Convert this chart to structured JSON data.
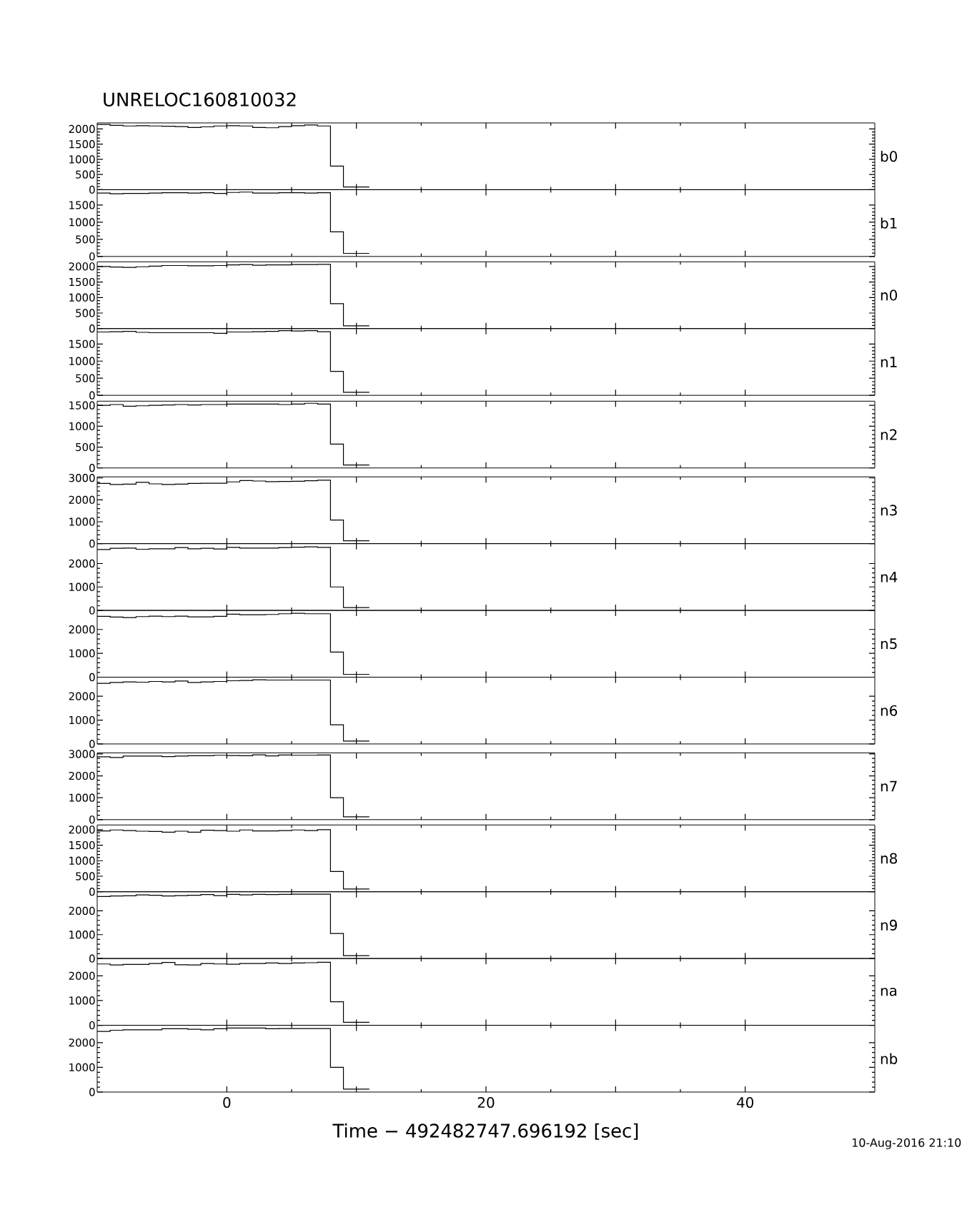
{
  "chart_data": [
    {
      "type": "histogram",
      "title": "UNRELOC160810032",
      "annotations": [
        "b0"
      ],
      "color": "#000000",
      "bins": [
        -10,
        -9,
        -8,
        -7,
        -6,
        -5,
        -4,
        -3,
        -2,
        -1,
        0,
        1,
        2,
        3,
        4,
        5,
        6,
        7,
        8,
        9,
        10,
        11
      ],
      "values": [
        2150,
        2120,
        2100,
        2110,
        2100,
        2090,
        2080,
        2050,
        2070,
        2100,
        2110,
        2100,
        2050,
        2040,
        2080,
        2110,
        2130,
        2100,
        780,
        90,
        90
      ],
      "xlim": [
        -10,
        50
      ],
      "xticks": [
        {
          "value": 0,
          "label": null
        },
        {
          "value": 10,
          "label": null
        },
        {
          "value": 20,
          "label": null
        },
        {
          "value": 30,
          "label": null
        },
        {
          "value": 40,
          "label": null
        }
      ],
      "ylim": [
        0,
        2200
      ],
      "yticks": [
        0,
        500,
        1000,
        1500,
        2000
      ],
      "tick_labels": "y"
    },
    {
      "type": "histogram",
      "annotations": [
        "b1"
      ],
      "color": "#000000",
      "bins": [
        -10,
        -9,
        -8,
        -7,
        -6,
        -5,
        -4,
        -3,
        -2,
        -1,
        0,
        1,
        2,
        3,
        4,
        5,
        6,
        7,
        8,
        9,
        10,
        11
      ],
      "values": [
        1850,
        1830,
        1840,
        1840,
        1850,
        1860,
        1860,
        1850,
        1860,
        1840,
        1870,
        1880,
        1850,
        1850,
        1860,
        1860,
        1850,
        1860,
        720,
        90,
        90
      ],
      "xlim": [
        -10,
        50
      ],
      "xticks": [
        {
          "value": 0,
          "label": null
        },
        {
          "value": 10,
          "label": null
        },
        {
          "value": 20,
          "label": null
        },
        {
          "value": 30,
          "label": null
        },
        {
          "value": 40,
          "label": null
        }
      ],
      "ylim": [
        0,
        1950
      ],
      "yticks": [
        0,
        500,
        1000,
        1500
      ],
      "tick_labels": "y"
    },
    {
      "type": "histogram",
      "annotations": [
        "n0"
      ],
      "color": "#000000",
      "bins": [
        -10,
        -9,
        -8,
        -7,
        -6,
        -5,
        -4,
        -3,
        -2,
        -1,
        0,
        1,
        2,
        3,
        4,
        5,
        6,
        7,
        8,
        9,
        10,
        11
      ],
      "values": [
        2000,
        1980,
        1970,
        1990,
        2010,
        2030,
        2030,
        2020,
        2020,
        2030,
        2050,
        2060,
        2040,
        2050,
        2050,
        2060,
        2060,
        2070,
        800,
        90,
        90
      ],
      "xlim": [
        -10,
        50
      ],
      "xticks": [
        {
          "value": 0,
          "label": null
        },
        {
          "value": 10,
          "label": null
        },
        {
          "value": 20,
          "label": null
        },
        {
          "value": 30,
          "label": null
        },
        {
          "value": 40,
          "label": null
        }
      ],
      "ylim": [
        0,
        2150
      ],
      "yticks": [
        0,
        500,
        1000,
        1500,
        2000
      ],
      "tick_labels": "y"
    },
    {
      "type": "histogram",
      "annotations": [
        "n1"
      ],
      "color": "#000000",
      "bins": [
        -10,
        -9,
        -8,
        -7,
        -6,
        -5,
        -4,
        -3,
        -2,
        -1,
        0,
        1,
        2,
        3,
        4,
        5,
        6,
        7,
        8,
        9,
        10,
        11
      ],
      "values": [
        1850,
        1860,
        1870,
        1840,
        1830,
        1830,
        1830,
        1830,
        1830,
        1810,
        1850,
        1850,
        1860,
        1870,
        1890,
        1880,
        1890,
        1860,
        700,
        90,
        90
      ],
      "xlim": [
        -10,
        50
      ],
      "xticks": [
        {
          "value": 0,
          "label": null
        },
        {
          "value": 10,
          "label": null
        },
        {
          "value": 20,
          "label": null
        },
        {
          "value": 30,
          "label": null
        },
        {
          "value": 40,
          "label": null
        }
      ],
      "ylim": [
        0,
        1950
      ],
      "yticks": [
        0,
        500,
        1000,
        1500
      ],
      "tick_labels": "y"
    },
    {
      "type": "histogram",
      "annotations": [
        "n2"
      ],
      "color": "#000000",
      "bins": [
        -10,
        -9,
        -8,
        -7,
        -6,
        -5,
        -4,
        -3,
        -2,
        -1,
        0,
        1,
        2,
        3,
        4,
        5,
        6,
        7,
        8,
        9,
        10,
        11
      ],
      "values": [
        1500,
        1520,
        1480,
        1490,
        1500,
        1510,
        1520,
        1510,
        1520,
        1520,
        1530,
        1530,
        1530,
        1530,
        1520,
        1530,
        1550,
        1530,
        570,
        70,
        70
      ],
      "xlim": [
        -10,
        50
      ],
      "xticks": [
        {
          "value": 0,
          "label": null
        },
        {
          "value": 10,
          "label": null
        },
        {
          "value": 20,
          "label": null
        },
        {
          "value": 30,
          "label": null
        },
        {
          "value": 40,
          "label": null
        }
      ],
      "ylim": [
        0,
        1600
      ],
      "yticks": [
        0,
        500,
        1000,
        1500
      ],
      "tick_labels": "y"
    },
    {
      "type": "histogram",
      "annotations": [
        "n3"
      ],
      "color": "#000000",
      "bins": [
        -10,
        -9,
        -8,
        -7,
        -6,
        -5,
        -4,
        -3,
        -2,
        -1,
        0,
        1,
        2,
        3,
        4,
        5,
        6,
        7,
        8,
        9,
        10,
        11
      ],
      "values": [
        2750,
        2700,
        2720,
        2800,
        2730,
        2700,
        2720,
        2750,
        2760,
        2760,
        2820,
        2880,
        2860,
        2830,
        2840,
        2850,
        2870,
        2900,
        1080,
        130,
        130
      ],
      "xlim": [
        -10,
        50
      ],
      "xticks": [
        {
          "value": 0,
          "label": null
        },
        {
          "value": 10,
          "label": null
        },
        {
          "value": 20,
          "label": null
        },
        {
          "value": 30,
          "label": null
        },
        {
          "value": 40,
          "label": null
        }
      ],
      "ylim": [
        0,
        3050
      ],
      "yticks": [
        0,
        1000,
        2000,
        3000
      ],
      "tick_labels": "y"
    },
    {
      "type": "histogram",
      "annotations": [
        "n4"
      ],
      "color": "#000000",
      "bins": [
        -10,
        -9,
        -8,
        -7,
        -6,
        -5,
        -4,
        -3,
        -2,
        -1,
        0,
        1,
        2,
        3,
        4,
        5,
        6,
        7,
        8,
        9,
        10,
        11
      ],
      "values": [
        2600,
        2650,
        2660,
        2610,
        2630,
        2630,
        2680,
        2630,
        2650,
        2620,
        2690,
        2660,
        2660,
        2660,
        2680,
        2700,
        2710,
        2690,
        1000,
        120,
        120
      ],
      "xlim": [
        -10,
        50
      ],
      "xticks": [
        {
          "value": 0,
          "label": null
        },
        {
          "value": 10,
          "label": null
        },
        {
          "value": 20,
          "label": null
        },
        {
          "value": 30,
          "label": null
        },
        {
          "value": 40,
          "label": null
        }
      ],
      "ylim": [
        0,
        2850
      ],
      "yticks": [
        0,
        1000,
        2000
      ],
      "tick_labels": "y"
    },
    {
      "type": "histogram",
      "annotations": [
        "n5"
      ],
      "color": "#000000",
      "bins": [
        -10,
        -9,
        -8,
        -7,
        -6,
        -5,
        -4,
        -3,
        -2,
        -1,
        0,
        1,
        2,
        3,
        4,
        5,
        6,
        7,
        8,
        9,
        10,
        11
      ],
      "values": [
        2550,
        2520,
        2500,
        2540,
        2560,
        2540,
        2560,
        2530,
        2530,
        2550,
        2640,
        2620,
        2620,
        2630,
        2660,
        2680,
        2660,
        2660,
        1050,
        120,
        120
      ],
      "xlim": [
        -10,
        50
      ],
      "xticks": [
        {
          "value": 0,
          "label": null
        },
        {
          "value": 10,
          "label": null
        },
        {
          "value": 20,
          "label": null
        },
        {
          "value": 30,
          "label": null
        },
        {
          "value": 40,
          "label": null
        }
      ],
      "ylim": [
        0,
        2800
      ],
      "yticks": [
        0,
        1000,
        2000
      ],
      "tick_labels": "y"
    },
    {
      "type": "histogram",
      "annotations": [
        "n6"
      ],
      "color": "#000000",
      "bins": [
        -10,
        -9,
        -8,
        -7,
        -6,
        -5,
        -4,
        -3,
        -2,
        -1,
        0,
        1,
        2,
        3,
        4,
        5,
        6,
        7,
        8,
        9,
        10,
        11
      ],
      "values": [
        2540,
        2580,
        2600,
        2590,
        2620,
        2600,
        2640,
        2580,
        2600,
        2620,
        2650,
        2660,
        2690,
        2680,
        2680,
        2680,
        2680,
        2680,
        800,
        120,
        120
      ],
      "xlim": [
        -10,
        50
      ],
      "xticks": [
        {
          "value": 0,
          "label": null
        },
        {
          "value": 10,
          "label": null
        },
        {
          "value": 20,
          "label": null
        },
        {
          "value": 30,
          "label": null
        },
        {
          "value": 40,
          "label": null
        }
      ],
      "ylim": [
        0,
        2800
      ],
      "yticks": [
        0,
        1000,
        2000
      ],
      "tick_labels": "y"
    },
    {
      "type": "histogram",
      "annotations": [
        "n7"
      ],
      "color": "#000000",
      "bins": [
        -10,
        -9,
        -8,
        -7,
        -6,
        -5,
        -4,
        -3,
        -2,
        -1,
        0,
        1,
        2,
        3,
        4,
        5,
        6,
        7,
        8,
        9,
        10,
        11
      ],
      "values": [
        2870,
        2840,
        2900,
        2900,
        2900,
        2880,
        2900,
        2920,
        2920,
        2940,
        2930,
        2920,
        2960,
        2910,
        2950,
        2940,
        2940,
        2950,
        1000,
        130,
        130
      ],
      "xlim": [
        -10,
        50
      ],
      "xticks": [
        {
          "value": 0,
          "label": null
        },
        {
          "value": 10,
          "label": null
        },
        {
          "value": 20,
          "label": null
        },
        {
          "value": 30,
          "label": null
        },
        {
          "value": 40,
          "label": null
        }
      ],
      "ylim": [
        0,
        3050
      ],
      "yticks": [
        0,
        1000,
        2000,
        3000
      ],
      "tick_labels": "y"
    },
    {
      "type": "histogram",
      "annotations": [
        "n8"
      ],
      "color": "#000000",
      "bins": [
        -10,
        -9,
        -8,
        -7,
        -6,
        -5,
        -4,
        -3,
        -2,
        -1,
        0,
        1,
        2,
        3,
        4,
        5,
        6,
        7,
        8,
        9,
        10,
        11
      ],
      "values": [
        1960,
        1990,
        1970,
        1950,
        1940,
        1920,
        1950,
        1920,
        1980,
        1970,
        1950,
        1990,
        1960,
        1960,
        1970,
        1990,
        1970,
        2000,
        650,
        90,
        90
      ],
      "xlim": [
        -10,
        50
      ],
      "xticks": [
        {
          "value": 0,
          "label": null
        },
        {
          "value": 10,
          "label": null
        },
        {
          "value": 20,
          "label": null
        },
        {
          "value": 30,
          "label": null
        },
        {
          "value": 40,
          "label": null
        }
      ],
      "ylim": [
        0,
        2150
      ],
      "yticks": [
        0,
        500,
        1000,
        1500,
        2000
      ],
      "tick_labels": "y"
    },
    {
      "type": "histogram",
      "annotations": [
        "n9"
      ],
      "color": "#000000",
      "bins": [
        -10,
        -9,
        -8,
        -7,
        -6,
        -5,
        -4,
        -3,
        -2,
        -1,
        0,
        1,
        2,
        3,
        4,
        5,
        6,
        7,
        8,
        9,
        10,
        11
      ],
      "values": [
        2600,
        2620,
        2630,
        2670,
        2650,
        2620,
        2640,
        2650,
        2680,
        2640,
        2690,
        2670,
        2690,
        2680,
        2690,
        2700,
        2700,
        2700,
        1050,
        120,
        120
      ],
      "xlim": [
        -10,
        50
      ],
      "xticks": [
        {
          "value": 0,
          "label": null
        },
        {
          "value": 10,
          "label": null
        },
        {
          "value": 20,
          "label": null
        },
        {
          "value": 30,
          "label": null
        },
        {
          "value": 40,
          "label": null
        }
      ],
      "ylim": [
        0,
        2800
      ],
      "yticks": [
        0,
        1000,
        2000
      ],
      "tick_labels": "y"
    },
    {
      "type": "histogram",
      "annotations": [
        "na"
      ],
      "color": "#000000",
      "bins": [
        -10,
        -9,
        -8,
        -7,
        -6,
        -5,
        -4,
        -3,
        -2,
        -1,
        0,
        1,
        2,
        3,
        4,
        5,
        6,
        7,
        8,
        9,
        10,
        11
      ],
      "values": [
        2480,
        2440,
        2460,
        2460,
        2500,
        2540,
        2450,
        2440,
        2500,
        2480,
        2470,
        2500,
        2500,
        2520,
        2500,
        2520,
        2530,
        2550,
        950,
        120,
        120
      ],
      "xlim": [
        -10,
        50
      ],
      "xticks": [
        {
          "value": 0,
          "label": null
        },
        {
          "value": 10,
          "label": null
        },
        {
          "value": 20,
          "label": null
        },
        {
          "value": 30,
          "label": null
        },
        {
          "value": 40,
          "label": null
        }
      ],
      "ylim": [
        0,
        2700
      ],
      "yticks": [
        0,
        1000,
        2000
      ],
      "tick_labels": "y"
    },
    {
      "type": "histogram",
      "xlabel": "Time − 492482747.696192 [sec]",
      "annotations": [
        "nb",
        "10-Aug-2016 21:10"
      ],
      "color": "#000000",
      "bins": [
        -10,
        -9,
        -8,
        -7,
        -6,
        -5,
        -4,
        -3,
        -2,
        -1,
        0,
        1,
        2,
        3,
        4,
        5,
        6,
        7,
        8,
        9,
        10,
        11
      ],
      "values": [
        2450,
        2500,
        2520,
        2520,
        2520,
        2560,
        2560,
        2540,
        2520,
        2560,
        2590,
        2590,
        2590,
        2560,
        2570,
        2570,
        2570,
        2570,
        1000,
        120,
        120
      ],
      "xlim": [
        -10,
        50
      ],
      "xticks": [
        0,
        {
          "value": 10,
          "label": null
        },
        20,
        {
          "value": 30,
          "label": null
        },
        40
      ],
      "ylim": [
        0,
        2700
      ],
      "yticks": [
        0,
        1000,
        2000
      ]
    }
  ]
}
